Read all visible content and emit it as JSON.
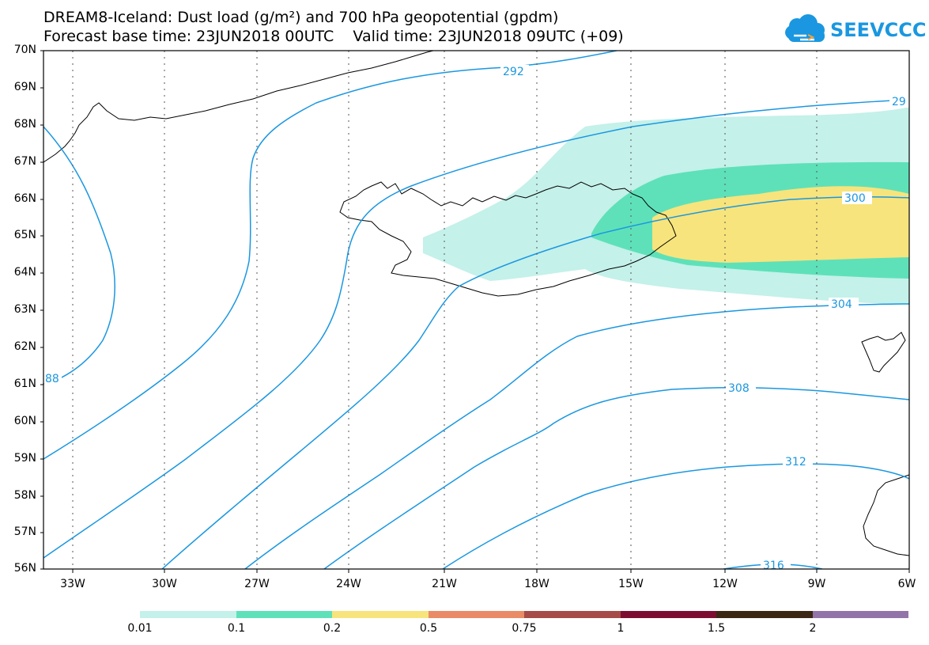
{
  "title": {
    "line1": "DREAM8-Iceland: Dust load (g/m²) and 700 hPa geopotential (gpdm)",
    "line2": "Forecast base time: 23JUN2018 00UTC    Valid time: 23JUN2018 09UTC (+09)"
  },
  "logo": {
    "text": "SEEVCCC",
    "icon": "cloud-icon",
    "color": "#1a97e0"
  },
  "axes": {
    "lat_labels": [
      "70N",
      "69N",
      "68N",
      "67N",
      "66N",
      "65N",
      "64N",
      "63N",
      "62N",
      "61N",
      "60N",
      "59N",
      "58N",
      "57N",
      "56N"
    ],
    "lon_labels": [
      "33W",
      "30W",
      "27W",
      "24W",
      "21W",
      "18W",
      "15W",
      "12W",
      "9W",
      "6W"
    ],
    "lat_range": [
      56,
      70
    ],
    "lon_range": [
      -34.5,
      -6
    ]
  },
  "contours": {
    "color": "#1a97e0",
    "labels": [
      "292",
      "29",
      "300",
      "304",
      "308",
      "312",
      "316",
      "88"
    ]
  },
  "legend": {
    "colors": [
      "#c4f1ea",
      "#5ee1b9",
      "#f7e47c",
      "#e98b66",
      "#a64b48",
      "#7d0d30",
      "#3b2714",
      "#9274a8"
    ],
    "labels": [
      "0.01",
      "0.1",
      "0.2",
      "0.5",
      "0.75",
      "1",
      "1.5",
      "2"
    ]
  }
}
